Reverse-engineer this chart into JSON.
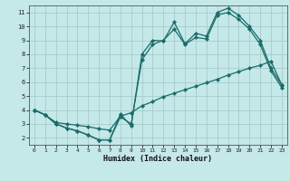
{
  "xlabel": "Humidex (Indice chaleur)",
  "bg_color": "#c5e8e8",
  "grid_color": "#a8cccc",
  "line_color": "#1a6b6b",
  "xlim": [
    -0.5,
    23.5
  ],
  "ylim": [
    1.5,
    11.5
  ],
  "xticks": [
    0,
    1,
    2,
    3,
    4,
    5,
    6,
    7,
    8,
    9,
    10,
    11,
    12,
    13,
    14,
    15,
    16,
    17,
    18,
    19,
    20,
    21,
    22,
    23
  ],
  "yticks": [
    2,
    3,
    4,
    5,
    6,
    7,
    8,
    9,
    10,
    11
  ],
  "line1_x": [
    0,
    1,
    2,
    3,
    4,
    5,
    6,
    7,
    8,
    9,
    10,
    11,
    12,
    13,
    14,
    15,
    16,
    17,
    18,
    19,
    20,
    21,
    22,
    23
  ],
  "line1_y": [
    4.0,
    3.65,
    3.0,
    2.7,
    2.5,
    2.2,
    1.85,
    1.85,
    3.7,
    2.85,
    8.0,
    9.0,
    8.95,
    10.3,
    8.75,
    9.5,
    9.3,
    11.0,
    11.3,
    10.8,
    10.0,
    9.0,
    7.0,
    5.8
  ],
  "line2_x": [
    0,
    1,
    2,
    3,
    4,
    5,
    6,
    7,
    8,
    9,
    10,
    11,
    12,
    13,
    14,
    15,
    16,
    17,
    18,
    19,
    20,
    21,
    22,
    23
  ],
  "line2_y": [
    4.0,
    3.65,
    3.0,
    2.7,
    2.5,
    2.2,
    1.85,
    1.85,
    3.5,
    3.0,
    7.6,
    8.7,
    9.0,
    9.8,
    8.7,
    9.2,
    9.1,
    10.8,
    11.0,
    10.5,
    9.8,
    8.7,
    6.8,
    5.6
  ],
  "line3_x": [
    0,
    1,
    2,
    3,
    4,
    5,
    6,
    7,
    8,
    9,
    10,
    11,
    12,
    13,
    14,
    15,
    16,
    17,
    18,
    19,
    20,
    21,
    22,
    23
  ],
  "line3_y": [
    4.0,
    3.65,
    3.1,
    3.0,
    2.9,
    2.8,
    2.65,
    2.55,
    3.55,
    3.8,
    4.3,
    4.6,
    4.95,
    5.2,
    5.45,
    5.7,
    5.95,
    6.2,
    6.5,
    6.75,
    7.0,
    7.2,
    7.5,
    5.8
  ]
}
